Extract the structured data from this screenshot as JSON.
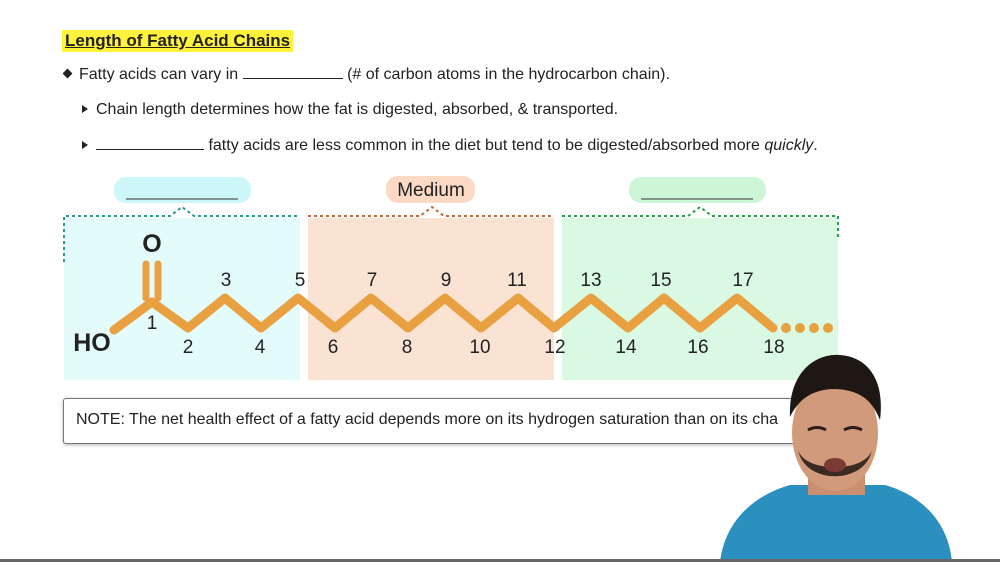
{
  "title": "Length of Fatty Acid Chains",
  "bullets": {
    "main_before": "Fatty acids can vary in",
    "main_after": "(# of carbon atoms in the hydrocarbon chain).",
    "sub1": "Chain length determines how the fat is digested, absorbed, & transported.",
    "sub2_after": "fatty acids are less common in the diet but tend to be digested/absorbed more",
    "sub2_em": "quickly",
    "sub2_end": "."
  },
  "diagram": {
    "medium_label": "Medium",
    "oxygen": "O",
    "hydroxyl": "HO",
    "carbon_numbers": [
      "1",
      "2",
      "3",
      "4",
      "5",
      "6",
      "7",
      "8",
      "9",
      "10",
      "11",
      "12",
      "13",
      "14",
      "15",
      "16",
      "17",
      "18"
    ],
    "colors": {
      "short_fill": "#e3fbfb",
      "short_border": "#2a9a8f",
      "medium_fill": "#fbe3d3",
      "medium_border": "#c0673a",
      "long_fill": "#d9f9e2",
      "long_border": "#2aa04a",
      "chain": "#e8a040"
    }
  },
  "note": "NOTE: The net health effect of a fatty acid depends more on its hydrogen saturation than on its cha"
}
